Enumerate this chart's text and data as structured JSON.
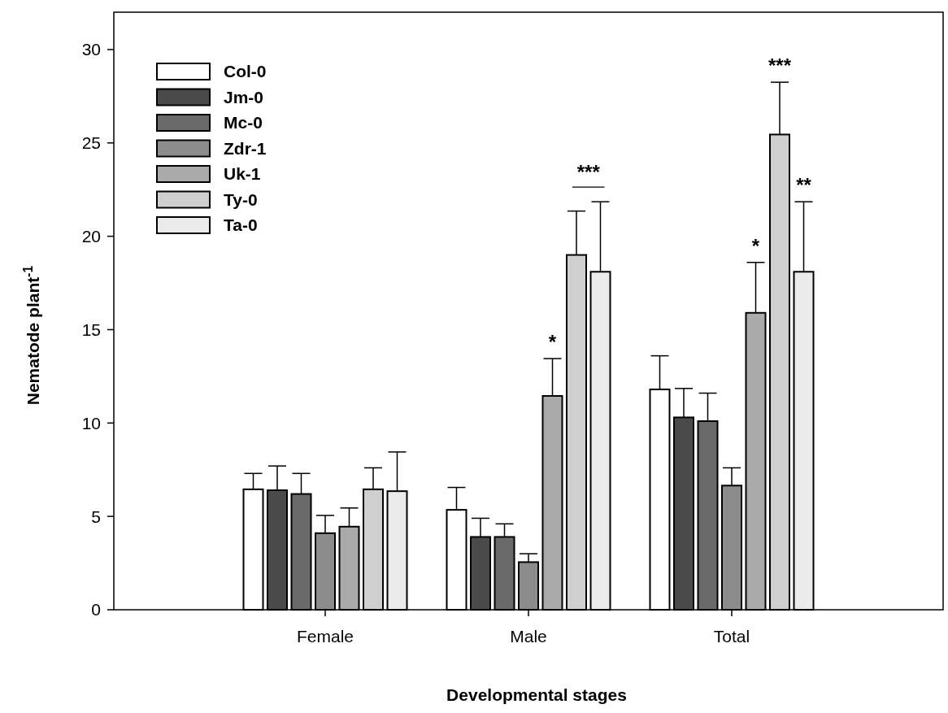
{
  "chart_data": {
    "type": "bar",
    "xlabel": "Developmental stages",
    "ylabel": "Nematode plant$^{-1}$",
    "categories": [
      "Female",
      "Male",
      "Total"
    ],
    "series": [
      {
        "name": "Col-0",
        "color": "#ffffff",
        "values": [
          6.45,
          5.35,
          11.8
        ],
        "errors": [
          0.85,
          1.2,
          1.8
        ]
      },
      {
        "name": "Jm-0",
        "color": "#4a4a4a",
        "values": [
          6.4,
          3.9,
          10.3
        ],
        "errors": [
          1.3,
          1.0,
          1.55
        ]
      },
      {
        "name": "Mc-0",
        "color": "#6a6a6a",
        "values": [
          6.2,
          3.9,
          10.1
        ],
        "errors": [
          1.1,
          0.7,
          1.5
        ]
      },
      {
        "name": "Zdr-1",
        "color": "#8c8c8c",
        "values": [
          4.1,
          2.55,
          6.65
        ],
        "errors": [
          0.95,
          0.45,
          0.95
        ]
      },
      {
        "name": "Uk-1",
        "color": "#aaaaaa",
        "values": [
          4.45,
          11.45,
          15.9
        ],
        "errors": [
          1.0,
          2.0,
          2.7
        ]
      },
      {
        "name": "Ty-0",
        "color": "#cfcfcf",
        "values": [
          6.45,
          19.0,
          25.45
        ],
        "errors": [
          1.15,
          2.35,
          2.8
        ]
      },
      {
        "name": "Ta-0",
        "color": "#ebebeb",
        "values": [
          6.35,
          18.1,
          18.1
        ],
        "errors": [
          2.1,
          3.75,
          3.75
        ]
      }
    ],
    "ylim": [
      0,
      32
    ],
    "yticks": [
      0,
      5,
      10,
      15,
      20,
      25,
      30
    ],
    "legend": "top left",
    "grid": false,
    "annotations": [
      "*",
      "***",
      "*",
      "***",
      "**"
    ]
  }
}
